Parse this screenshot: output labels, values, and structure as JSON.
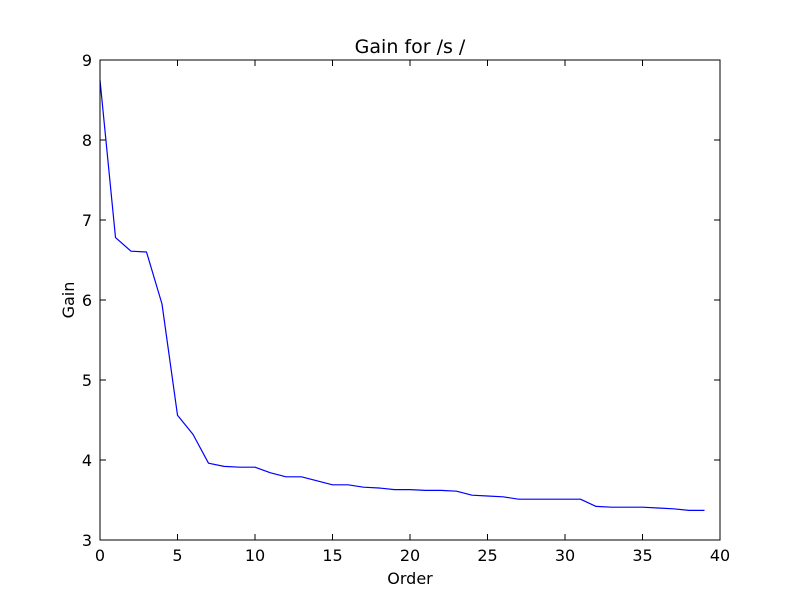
{
  "chart_data": {
    "type": "line",
    "title": "Gain for /s /",
    "xlabel": "Order",
    "ylabel": "Gain",
    "xlim": [
      0,
      40
    ],
    "ylim": [
      3,
      9
    ],
    "xticks": [
      "0",
      "5",
      "10",
      "15",
      "20",
      "25",
      "30",
      "35",
      "40"
    ],
    "yticks": [
      "3",
      "4",
      "5",
      "6",
      "7",
      "8",
      "9"
    ],
    "grid": false,
    "series": [
      {
        "color": "#0000ff",
        "x": [
          0,
          1,
          2,
          3,
          4,
          5,
          6,
          7,
          8,
          9,
          10,
          11,
          12,
          13,
          14,
          15,
          16,
          17,
          18,
          19,
          20,
          21,
          22,
          23,
          24,
          25,
          26,
          27,
          28,
          29,
          30,
          31,
          32,
          33,
          34,
          35,
          36,
          37,
          38,
          39
        ],
        "y": [
          8.75,
          6.78,
          6.61,
          6.6,
          5.95,
          4.56,
          4.32,
          3.96,
          3.92,
          3.91,
          3.91,
          3.84,
          3.79,
          3.79,
          3.74,
          3.69,
          3.69,
          3.66,
          3.65,
          3.63,
          3.63,
          3.62,
          3.62,
          3.61,
          3.56,
          3.55,
          3.54,
          3.51,
          3.51,
          3.51,
          3.51,
          3.51,
          3.42,
          3.41,
          3.41,
          3.41,
          3.4,
          3.39,
          3.37,
          3.37
        ]
      }
    ]
  }
}
